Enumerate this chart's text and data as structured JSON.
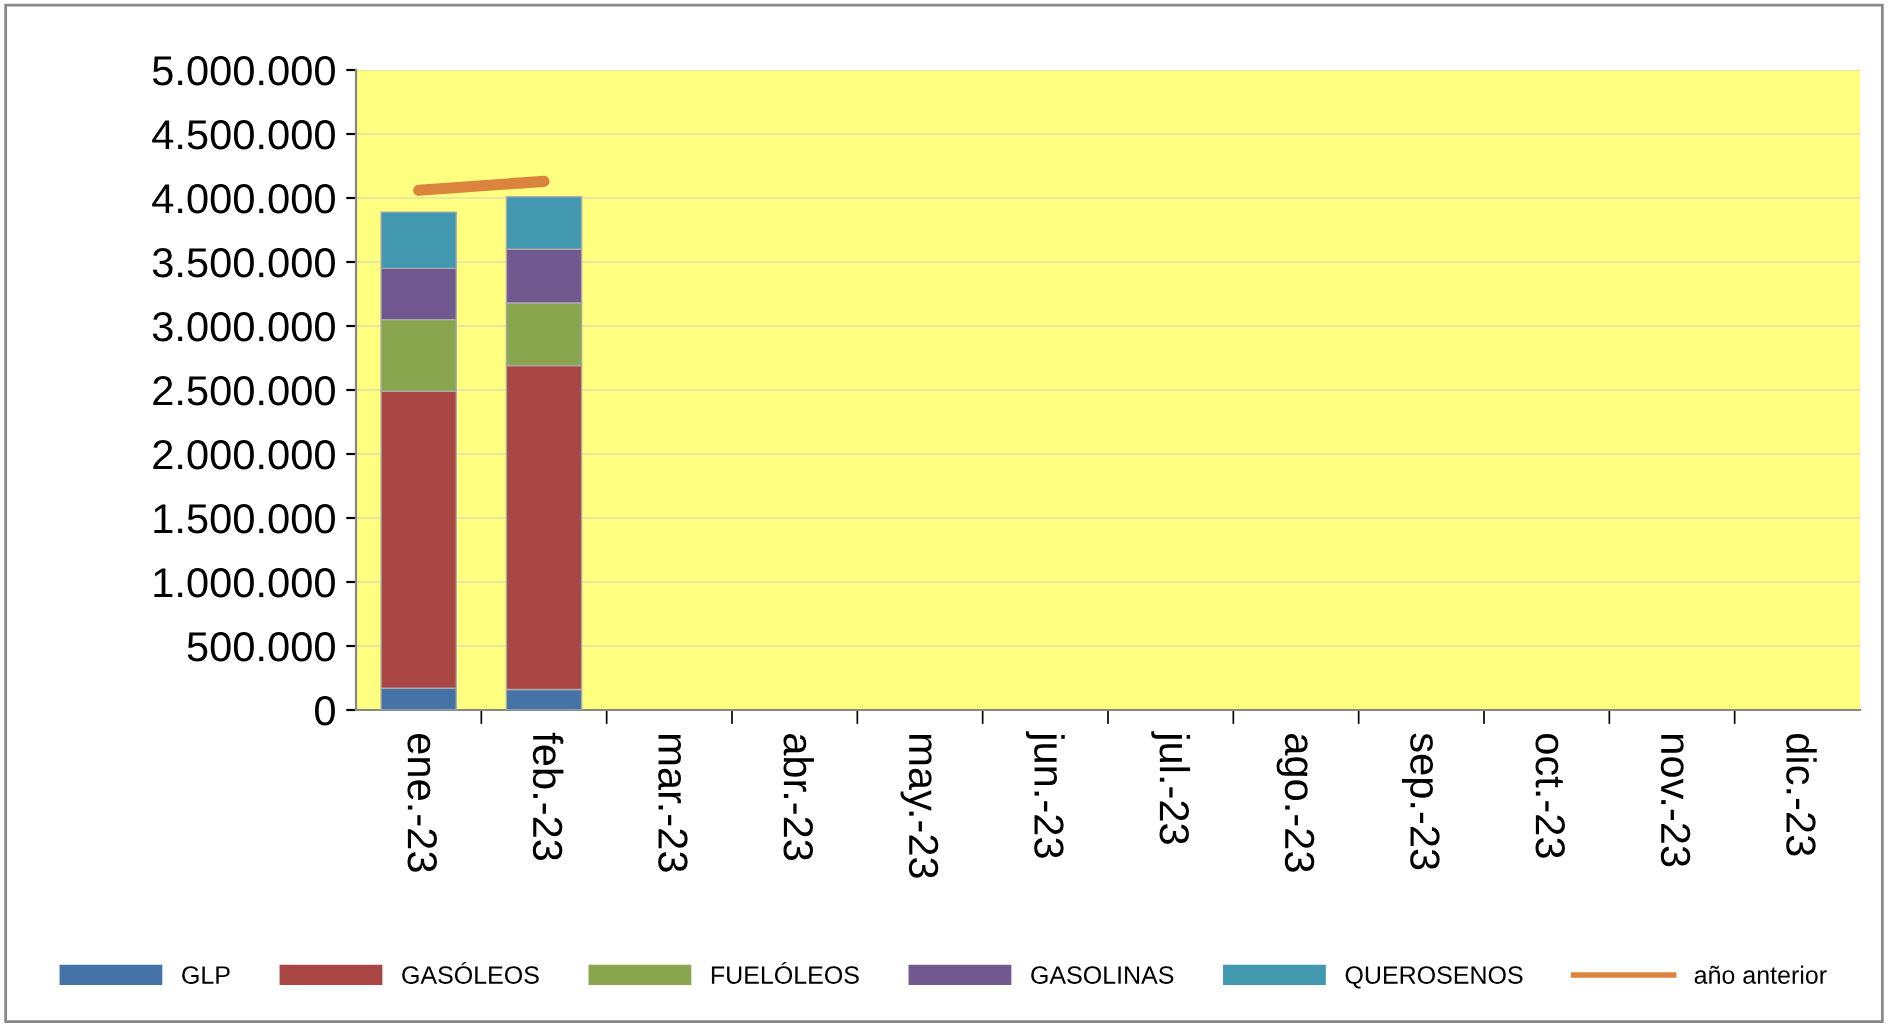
{
  "chart_data": {
    "type": "bar",
    "stacked": true,
    "categories": [
      "ene.-23",
      "feb.-23",
      "mar.-23",
      "abr.-23",
      "may.-23",
      "jun.-23",
      "jul.-23",
      "ago.-23",
      "sep.-23",
      "oct.-23",
      "nov.-23",
      "dic.-23"
    ],
    "series": [
      {
        "name": "GLP",
        "color": "#4572a7",
        "values": [
          170000,
          160000,
          null,
          null,
          null,
          null,
          null,
          null,
          null,
          null,
          null,
          null
        ]
      },
      {
        "name": "GASÓLEOS",
        "color": "#aa4643",
        "values": [
          2320000,
          2530000,
          null,
          null,
          null,
          null,
          null,
          null,
          null,
          null,
          null,
          null
        ]
      },
      {
        "name": "FUELÓLEOS",
        "color": "#89a54e",
        "values": [
          560000,
          490000,
          null,
          null,
          null,
          null,
          null,
          null,
          null,
          null,
          null,
          null
        ]
      },
      {
        "name": "GASOLINAS",
        "color": "#71588f",
        "values": [
          400000,
          420000,
          null,
          null,
          null,
          null,
          null,
          null,
          null,
          null,
          null,
          null
        ]
      },
      {
        "name": "QUEROSENOS",
        "color": "#4198af",
        "values": [
          440000,
          410000,
          null,
          null,
          null,
          null,
          null,
          null,
          null,
          null,
          null,
          null
        ]
      },
      {
        "name": "año anterior",
        "type": "line",
        "color": "#db843d",
        "values": [
          4060000,
          4130000,
          null,
          null,
          null,
          null,
          null,
          null,
          null,
          null,
          null,
          null
        ]
      }
    ],
    "ylim": [
      0,
      5000000
    ],
    "yticks": [
      {
        "value": 0,
        "label": "0"
      },
      {
        "value": 500000,
        "label": "500.000"
      },
      {
        "value": 1000000,
        "label": "1.000.000"
      },
      {
        "value": 1500000,
        "label": "1.500.000"
      },
      {
        "value": 2000000,
        "label": "2.000.000"
      },
      {
        "value": 2500000,
        "label": "2.500.000"
      },
      {
        "value": 3000000,
        "label": "3.000.000"
      },
      {
        "value": 3500000,
        "label": "3.500.000"
      },
      {
        "value": 4000000,
        "label": "4.000.000"
      },
      {
        "value": 4500000,
        "label": "4.500.000"
      },
      {
        "value": 5000000,
        "label": "5.000.000"
      }
    ],
    "grid": "y",
    "legend": "bottom"
  }
}
